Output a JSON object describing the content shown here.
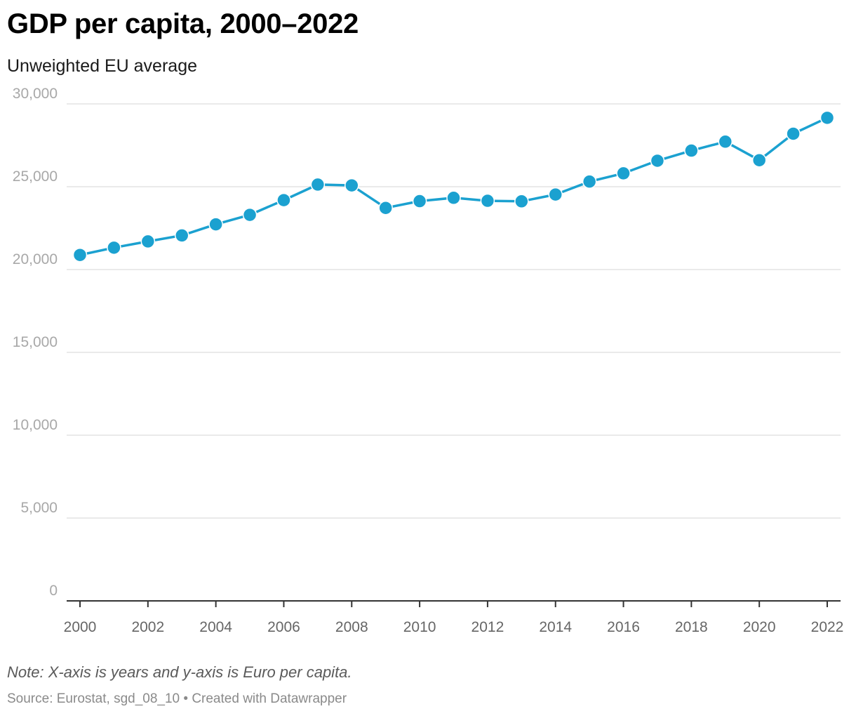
{
  "title": "GDP per capita, 2000–2022",
  "subtitle": "Unweighted EU average",
  "note": "Note: X-axis is years and y-axis is Euro per capita.",
  "source": "Source: Eurostat, sgd_08_10 • Created with Datawrapper",
  "colors": {
    "line": "#1ba1d0",
    "grid": "#e3e3e3",
    "axis": "#333333"
  },
  "chart_data": {
    "type": "line",
    "title": "GDP per capita, 2000–2022",
    "subtitle": "Unweighted EU average",
    "xlabel": "",
    "ylabel": "",
    "ylim": [
      0,
      30000
    ],
    "xlim": [
      2000,
      2022
    ],
    "grid": true,
    "y_ticks": [
      0,
      5000,
      10000,
      15000,
      20000,
      25000,
      30000
    ],
    "y_tick_labels": [
      "0",
      "5,000",
      "10,000",
      "15,000",
      "20,000",
      "25,000",
      "30,000"
    ],
    "x_ticks": [
      2000,
      2002,
      2004,
      2006,
      2008,
      2010,
      2012,
      2014,
      2016,
      2018,
      2020,
      2022
    ],
    "x_tick_labels": [
      "2000",
      "2002",
      "2004",
      "2006",
      "2008",
      "2010",
      "2012",
      "2014",
      "2016",
      "2018",
      "2020",
      "2022"
    ],
    "x": [
      2000,
      2001,
      2002,
      2003,
      2004,
      2005,
      2006,
      2007,
      2008,
      2009,
      2010,
      2011,
      2012,
      2013,
      2014,
      2015,
      2016,
      2017,
      2018,
      2019,
      2020,
      2021,
      2022
    ],
    "series": [
      {
        "values": [
          20880,
          21320,
          21700,
          22060,
          22730,
          23300,
          24190,
          25130,
          25080,
          23720,
          24130,
          24330,
          24150,
          24120,
          24530,
          25310,
          25810,
          26570,
          27180,
          27720,
          26600,
          28200,
          29160
        ]
      }
    ]
  }
}
